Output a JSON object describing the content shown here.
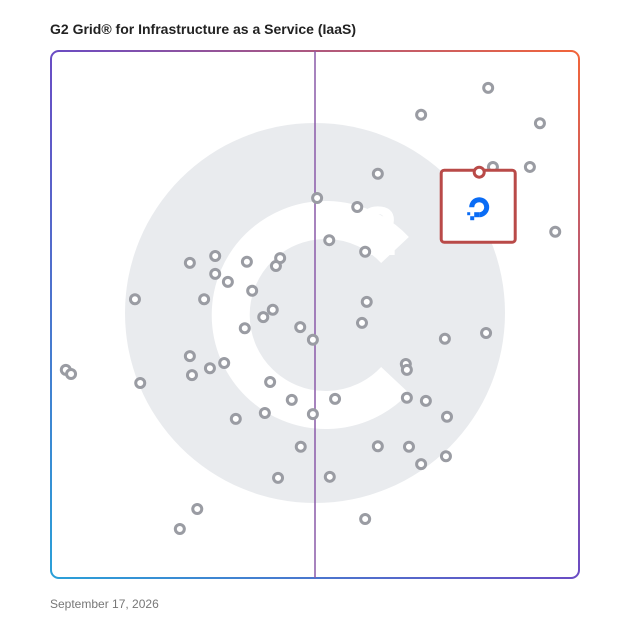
{
  "chart_data": {
    "type": "scatter",
    "title": "G2 Grid® for Infrastructure as a Service (IaaS)",
    "caption": "September 17, 2026",
    "xlim": [
      0,
      100
    ],
    "ylim": [
      0,
      100
    ],
    "quadrant_split": [
      50,
      50
    ],
    "color": "#9a9ca3",
    "x": [
      82.8,
      70.1,
      92.6,
      83.7,
      90.7,
      61.9,
      50.4,
      58.0,
      95.5,
      52.7,
      59.5,
      31.1,
      43.4,
      26.3,
      37.1,
      42.6,
      31.1,
      33.5,
      38.1,
      15.9,
      29.0,
      59.8,
      42.0,
      40.2,
      58.9,
      36.7,
      47.2,
      82.4,
      49.6,
      74.6,
      26.3,
      67.2,
      32.8,
      30.1,
      67.4,
      2.8,
      3.8,
      26.7,
      16.9,
      41.5,
      45.6,
      53.8,
      67.4,
      71.0,
      40.5,
      49.6,
      35.0,
      75.0,
      47.3,
      61.9,
      67.8,
      74.8,
      70.1,
      43.0,
      52.8,
      27.7,
      59.5,
      24.4
    ],
    "y": [
      93.0,
      87.9,
      86.3,
      78.0,
      78.0,
      76.7,
      72.1,
      70.4,
      65.7,
      64.1,
      61.9,
      61.1,
      60.7,
      59.8,
      60.0,
      59.2,
      57.7,
      56.2,
      54.5,
      52.9,
      52.9,
      52.4,
      50.9,
      49.5,
      48.4,
      47.4,
      47.6,
      46.5,
      45.2,
      45.4,
      42.1,
      40.6,
      40.8,
      39.8,
      39.5,
      39.5,
      38.7,
      38.5,
      37.0,
      37.2,
      33.8,
      34.0,
      34.2,
      33.6,
      31.3,
      31.1,
      30.2,
      30.6,
      24.9,
      25.0,
      24.9,
      23.1,
      21.6,
      19.0,
      19.2,
      13.1,
      11.2,
      9.3
    ],
    "highlight": {
      "x": 81.1,
      "y": 77.0,
      "color": "#b94a48"
    }
  }
}
